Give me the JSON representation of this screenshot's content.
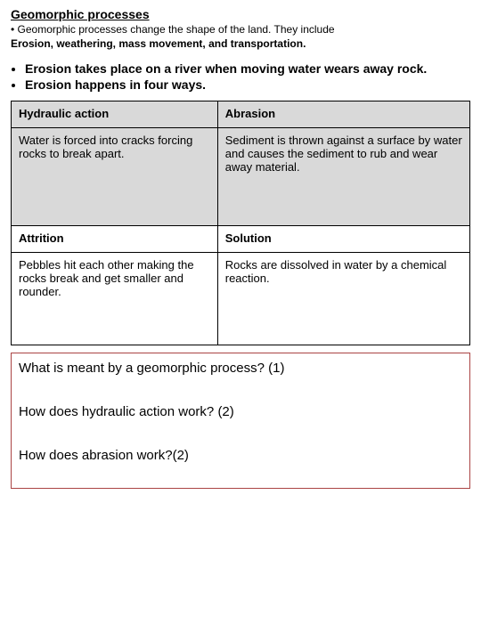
{
  "title": "Geomorphic processes",
  "intro": {
    "line1_prefix": "• ",
    "line1": "Geomorphic processes change the shape of the land. They include",
    "line2_bold": "Erosion, weathering, mass movement, and transportation."
  },
  "bullets": [
    {
      "bold": "Erosion",
      "rest": " takes place on a river when moving water wears away rock."
    },
    {
      "bold": "",
      "rest": "Erosion happens in four ways."
    }
  ],
  "table": {
    "h1": "Hydraulic action",
    "h2": "Abrasion",
    "d1": "Water is forced into cracks forcing rocks to break apart.",
    "d2": "Sediment is thrown against a surface by water and causes the sediment to rub and wear away material.",
    "h3": "Attrition",
    "h4": "Solution",
    "d3": "Pebbles hit each other making the rocks break and get smaller and rounder.",
    "d4": "Rocks are dissolved in water by a chemical reaction."
  },
  "questions": {
    "q1": "What is meant by a geomorphic process? (1)",
    "q2": "How does hydraulic action work? (2)",
    "q3": "How does abrasion work?(2)"
  },
  "colors": {
    "page_bg": "#ffffff",
    "text": "#000000",
    "table_header_bg": "#d9d9d9",
    "table_border": "#000000",
    "qbox_border": "#aa4444"
  },
  "fonts": {
    "family": "Comic Sans MS",
    "title_size_pt": 14,
    "intro_size_pt": 12,
    "body_size_pt": 13,
    "questions_size_pt": 15
  }
}
